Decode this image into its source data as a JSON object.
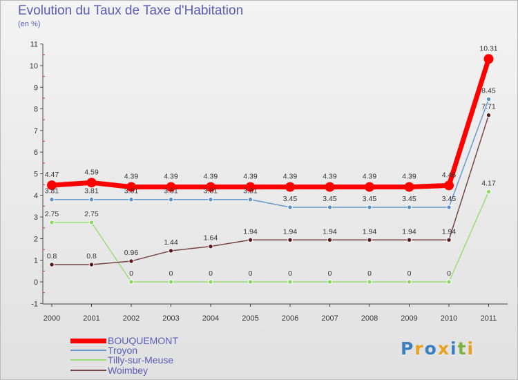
{
  "chart_data": {
    "type": "line",
    "title": "Evolution du Taux de Taxe d'Habitation",
    "subtitle": "(en %)",
    "categories": [
      "2000",
      "2001",
      "2002",
      "2003",
      "2004",
      "2005",
      "2006",
      "2007",
      "2008",
      "2009",
      "2010",
      "2011"
    ],
    "y_ticks": [
      -1,
      0,
      1,
      2,
      3,
      4,
      5,
      6,
      7,
      8,
      9,
      10,
      11
    ],
    "ylim": [
      -1,
      11
    ],
    "grid": false,
    "legend_position": "bottom-left",
    "series": [
      {
        "name": "BOUQUEMONT",
        "color": "#ff0000",
        "values": [
          4.47,
          4.59,
          4.39,
          4.39,
          4.39,
          4.39,
          4.39,
          4.39,
          4.39,
          4.39,
          4.46,
          10.31
        ],
        "labels": [
          "4.47",
          "4.59",
          "4.39",
          "4.39",
          "4.39",
          "4.39",
          "4.39",
          "4.39",
          "4.39",
          "4.39",
          "4.46",
          "10.31"
        ]
      },
      {
        "name": "Troyon",
        "color": "#6699cc",
        "values": [
          3.81,
          3.81,
          3.81,
          3.81,
          3.81,
          3.81,
          3.45,
          3.45,
          3.45,
          3.45,
          3.45,
          8.45
        ],
        "labels": [
          "3.81",
          "3.81",
          "3.81",
          "3.81",
          "3.81",
          "3.81",
          "3.45",
          "3.45",
          "3.45",
          "3.45",
          "3.45",
          "8.45"
        ]
      },
      {
        "name": "Tilly-sur-Meuse",
        "color": "#99dd77",
        "values": [
          2.75,
          2.75,
          0,
          0,
          0,
          0,
          0,
          0,
          0,
          0,
          0,
          4.17
        ],
        "labels": [
          "2.75",
          "2.75",
          "0",
          "0",
          "0",
          "0",
          "0",
          "0",
          "0",
          "0",
          "0",
          "4.17"
        ]
      },
      {
        "name": "Woimbey",
        "color": "#774444",
        "values": [
          0.8,
          0.8,
          0.96,
          1.44,
          1.64,
          1.94,
          1.94,
          1.94,
          1.94,
          1.94,
          1.94,
          7.71
        ],
        "labels": [
          "0.8",
          "0.8",
          "0.96",
          "1.44",
          "1.64",
          "1.94",
          "1.94",
          "1.94",
          "1.94",
          "1.94",
          "1.94",
          "7.71"
        ]
      }
    ]
  },
  "logo": {
    "letters": [
      "P",
      "r",
      "o",
      "x",
      "i",
      "t",
      "i"
    ],
    "colors": [
      "#3a7fc0",
      "#e8a020",
      "#3a7fc0",
      "#e8a020",
      "#3a7fc0",
      "#80b040",
      "#e8a020"
    ]
  }
}
